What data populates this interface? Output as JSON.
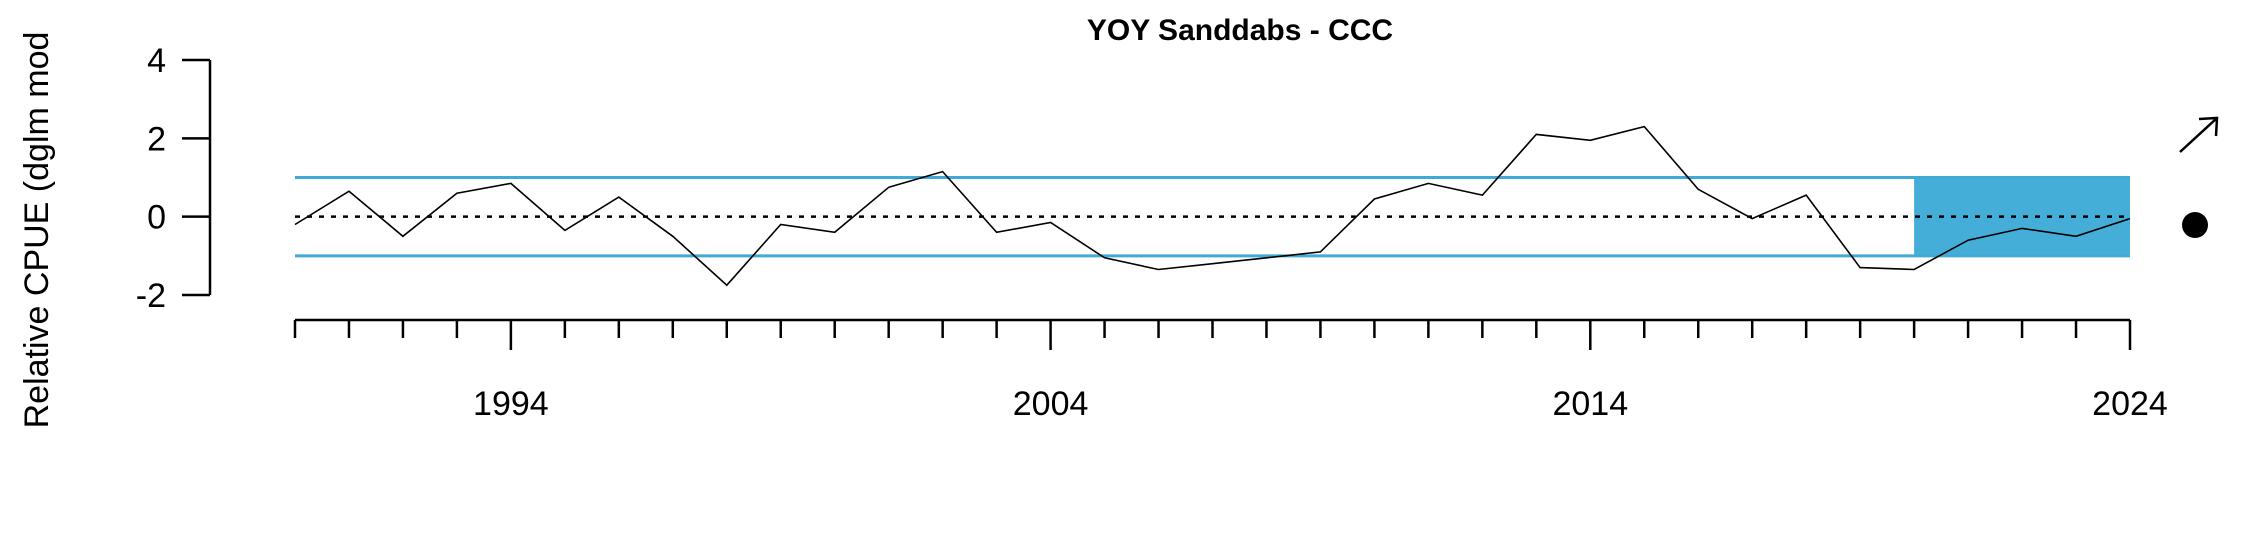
{
  "chart_data": {
    "type": "line",
    "title": "YOY Sanddabs - CCC",
    "ylabel": "Relative CPUE (dglm mod",
    "xlabel": "",
    "xlim": [
      1990,
      2024
    ],
    "ylim": [
      -2,
      4
    ],
    "y_ticks": [
      "-2",
      "0",
      "2",
      "4"
    ],
    "x_ticks_major": [
      "1994",
      "2004",
      "2014",
      "2024"
    ],
    "x_ticks_minor_step": 1,
    "series": [
      {
        "x": [
          1990,
          1991,
          1992,
          1993,
          1994,
          1995,
          1996,
          1997,
          1998,
          1999,
          2000,
          2001,
          2002,
          2003,
          2004,
          2005,
          2006,
          2007,
          2008,
          2009,
          2010,
          2011,
          2012,
          2013,
          2014,
          2015,
          2016,
          2017,
          2018,
          2019,
          2020,
          2021,
          2022,
          2023,
          2024
        ],
        "values": [
          -0.2,
          0.65,
          -0.5,
          0.6,
          0.85,
          -0.35,
          0.5,
          -0.5,
          -1.75,
          -0.2,
          -0.4,
          0.75,
          1.15,
          -0.4,
          -0.15,
          -1.05,
          -1.35,
          -1.2,
          -1.05,
          -0.9,
          0.45,
          0.85,
          0.55,
          2.1,
          1.95,
          2.3,
          0.7,
          -0.05,
          0.55,
          -1.3,
          -1.35,
          -0.6,
          -0.3,
          -0.5,
          -0.05
        ]
      }
    ],
    "reference_lines": {
      "mean": 0,
      "upper_sd": 1,
      "lower_sd": -1
    },
    "highlight_window": {
      "x_start": 2020,
      "x_end": 2024
    },
    "trend_indicator": "arrow-up-right-icon",
    "mean_indicator": "dot-icon",
    "colors": {
      "line": "#000000",
      "sd_lines": "#3FAAD6",
      "highlight": "#44AED8",
      "mean_line": "#000000"
    },
    "grid": false,
    "legend": "none"
  }
}
